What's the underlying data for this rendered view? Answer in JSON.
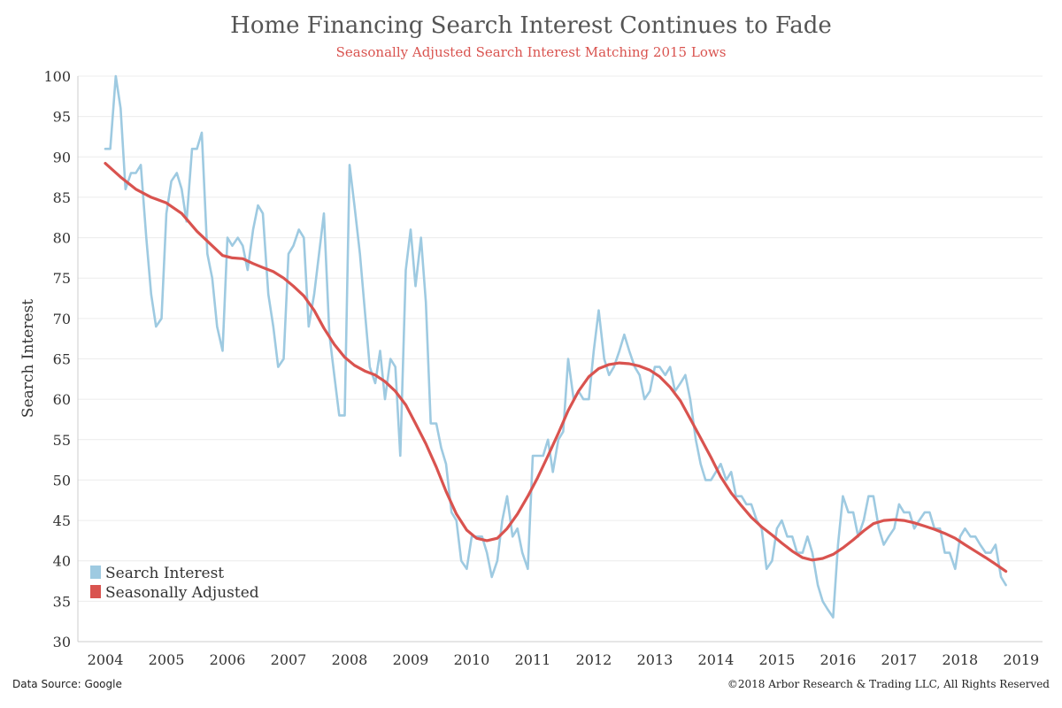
{
  "chart_data": {
    "type": "line",
    "title": "Home Financing Search Interest Continues to Fade",
    "subtitle": "Seasonally Adjusted Search Interest Matching 2015 Lows",
    "xlabel": "",
    "ylabel": "Search Interest",
    "xlim": [
      2003.55,
      2019.35
    ],
    "ylim": [
      30,
      100
    ],
    "x_ticks": [
      "2004",
      "2005",
      "2006",
      "2007",
      "2008",
      "2009",
      "2010",
      "2011",
      "2012",
      "2013",
      "2014",
      "2015",
      "2016",
      "2017",
      "2018",
      "2019"
    ],
    "y_ticks": [
      30,
      35,
      40,
      45,
      50,
      55,
      60,
      65,
      70,
      75,
      80,
      85,
      90,
      95,
      100
    ],
    "grid": "horizontal",
    "legend_position": "bottom-left",
    "series": [
      {
        "name": "Search Interest",
        "color": "#9ecae1",
        "points": [
          [
            2004.0,
            91
          ],
          [
            2004.08,
            91
          ],
          [
            2004.17,
            100
          ],
          [
            2004.25,
            96
          ],
          [
            2004.33,
            86
          ],
          [
            2004.42,
            88
          ],
          [
            2004.5,
            88
          ],
          [
            2004.58,
            89
          ],
          [
            2004.67,
            80
          ],
          [
            2004.75,
            73
          ],
          [
            2004.83,
            69
          ],
          [
            2004.92,
            70
          ],
          [
            2005.0,
            83
          ],
          [
            2005.08,
            87
          ],
          [
            2005.17,
            88
          ],
          [
            2005.25,
            86
          ],
          [
            2005.33,
            82
          ],
          [
            2005.42,
            91
          ],
          [
            2005.5,
            91
          ],
          [
            2005.58,
            93
          ],
          [
            2005.67,
            78
          ],
          [
            2005.75,
            75
          ],
          [
            2005.83,
            69
          ],
          [
            2005.92,
            66
          ],
          [
            2006.0,
            80
          ],
          [
            2006.08,
            79
          ],
          [
            2006.17,
            80
          ],
          [
            2006.25,
            79
          ],
          [
            2006.33,
            76
          ],
          [
            2006.42,
            81
          ],
          [
            2006.5,
            84
          ],
          [
            2006.58,
            83
          ],
          [
            2006.67,
            73
          ],
          [
            2006.75,
            69
          ],
          [
            2006.83,
            64
          ],
          [
            2006.92,
            65
          ],
          [
            2007.0,
            78
          ],
          [
            2007.08,
            79
          ],
          [
            2007.17,
            81
          ],
          [
            2007.25,
            80
          ],
          [
            2007.33,
            69
          ],
          [
            2007.42,
            73
          ],
          [
            2007.5,
            78
          ],
          [
            2007.58,
            83
          ],
          [
            2007.67,
            68
          ],
          [
            2007.75,
            63
          ],
          [
            2007.83,
            58
          ],
          [
            2007.92,
            58
          ],
          [
            2008.0,
            89
          ],
          [
            2008.08,
            84
          ],
          [
            2008.17,
            78
          ],
          [
            2008.25,
            71
          ],
          [
            2008.33,
            64
          ],
          [
            2008.42,
            62
          ],
          [
            2008.5,
            66
          ],
          [
            2008.58,
            60
          ],
          [
            2008.67,
            65
          ],
          [
            2008.75,
            64
          ],
          [
            2008.83,
            53
          ],
          [
            2008.92,
            76
          ],
          [
            2009.0,
            81
          ],
          [
            2009.08,
            74
          ],
          [
            2009.17,
            80
          ],
          [
            2009.25,
            72
          ],
          [
            2009.33,
            57
          ],
          [
            2009.42,
            57
          ],
          [
            2009.5,
            54
          ],
          [
            2009.58,
            52
          ],
          [
            2009.67,
            46
          ],
          [
            2009.75,
            45
          ],
          [
            2009.83,
            40
          ],
          [
            2009.92,
            39
          ],
          [
            2010.0,
            43
          ],
          [
            2010.08,
            43
          ],
          [
            2010.17,
            43
          ],
          [
            2010.25,
            41
          ],
          [
            2010.33,
            38
          ],
          [
            2010.42,
            40
          ],
          [
            2010.5,
            45
          ],
          [
            2010.58,
            48
          ],
          [
            2010.67,
            43
          ],
          [
            2010.75,
            44
          ],
          [
            2010.83,
            41
          ],
          [
            2010.92,
            39
          ],
          [
            2011.0,
            53
          ],
          [
            2011.08,
            53
          ],
          [
            2011.17,
            53
          ],
          [
            2011.25,
            55
          ],
          [
            2011.33,
            51
          ],
          [
            2011.42,
            55
          ],
          [
            2011.5,
            56
          ],
          [
            2011.58,
            65
          ],
          [
            2011.67,
            60
          ],
          [
            2011.75,
            61
          ],
          [
            2011.83,
            60
          ],
          [
            2011.92,
            60
          ],
          [
            2012.0,
            66
          ],
          [
            2012.08,
            71
          ],
          [
            2012.17,
            65
          ],
          [
            2012.25,
            63
          ],
          [
            2012.33,
            64
          ],
          [
            2012.42,
            66
          ],
          [
            2012.5,
            68
          ],
          [
            2012.58,
            66
          ],
          [
            2012.67,
            64
          ],
          [
            2012.75,
            63
          ],
          [
            2012.83,
            60
          ],
          [
            2012.92,
            61
          ],
          [
            2013.0,
            64
          ],
          [
            2013.08,
            64
          ],
          [
            2013.17,
            63
          ],
          [
            2013.25,
            64
          ],
          [
            2013.33,
            61
          ],
          [
            2013.42,
            62
          ],
          [
            2013.5,
            63
          ],
          [
            2013.58,
            60
          ],
          [
            2013.67,
            55
          ],
          [
            2013.75,
            52
          ],
          [
            2013.83,
            50
          ],
          [
            2013.92,
            50
          ],
          [
            2014.0,
            51
          ],
          [
            2014.08,
            52
          ],
          [
            2014.17,
            50
          ],
          [
            2014.25,
            51
          ],
          [
            2014.33,
            48
          ],
          [
            2014.42,
            48
          ],
          [
            2014.5,
            47
          ],
          [
            2014.58,
            47
          ],
          [
            2014.67,
            45
          ],
          [
            2014.75,
            44
          ],
          [
            2014.83,
            39
          ],
          [
            2014.92,
            40
          ],
          [
            2015.0,
            44
          ],
          [
            2015.08,
            45
          ],
          [
            2015.17,
            43
          ],
          [
            2015.25,
            43
          ],
          [
            2015.33,
            41
          ],
          [
            2015.42,
            41
          ],
          [
            2015.5,
            43
          ],
          [
            2015.58,
            41
          ],
          [
            2015.67,
            37
          ],
          [
            2015.75,
            35
          ],
          [
            2015.83,
            34
          ],
          [
            2015.92,
            33
          ],
          [
            2016.0,
            42
          ],
          [
            2016.08,
            48
          ],
          [
            2016.17,
            46
          ],
          [
            2016.25,
            46
          ],
          [
            2016.33,
            43
          ],
          [
            2016.42,
            45
          ],
          [
            2016.5,
            48
          ],
          [
            2016.58,
            48
          ],
          [
            2016.67,
            44
          ],
          [
            2016.75,
            42
          ],
          [
            2016.83,
            43
          ],
          [
            2016.92,
            44
          ],
          [
            2017.0,
            47
          ],
          [
            2017.08,
            46
          ],
          [
            2017.17,
            46
          ],
          [
            2017.25,
            44
          ],
          [
            2017.33,
            45
          ],
          [
            2017.42,
            46
          ],
          [
            2017.5,
            46
          ],
          [
            2017.58,
            44
          ],
          [
            2017.67,
            44
          ],
          [
            2017.75,
            41
          ],
          [
            2017.83,
            41
          ],
          [
            2017.92,
            39
          ],
          [
            2018.0,
            43
          ],
          [
            2018.08,
            44
          ],
          [
            2018.17,
            43
          ],
          [
            2018.25,
            43
          ],
          [
            2018.33,
            42
          ],
          [
            2018.42,
            41
          ],
          [
            2018.5,
            41
          ],
          [
            2018.58,
            42
          ],
          [
            2018.67,
            38
          ],
          [
            2018.75,
            37
          ]
        ]
      },
      {
        "name": "Seasonally Adjusted",
        "color": "#d9534f",
        "points": [
          [
            2004.0,
            89.2
          ],
          [
            2004.25,
            87.5
          ],
          [
            2004.5,
            86.0
          ],
          [
            2004.75,
            85.0
          ],
          [
            2005.0,
            84.3
          ],
          [
            2005.25,
            83.0
          ],
          [
            2005.5,
            80.8
          ],
          [
            2005.75,
            79.0
          ],
          [
            2005.92,
            77.8
          ],
          [
            2006.08,
            77.5
          ],
          [
            2006.25,
            77.4
          ],
          [
            2006.42,
            76.8
          ],
          [
            2006.58,
            76.3
          ],
          [
            2006.75,
            75.8
          ],
          [
            2006.92,
            75.0
          ],
          [
            2007.08,
            74.0
          ],
          [
            2007.25,
            72.8
          ],
          [
            2007.42,
            71.0
          ],
          [
            2007.58,
            68.8
          ],
          [
            2007.75,
            66.8
          ],
          [
            2007.92,
            65.2
          ],
          [
            2008.08,
            64.2
          ],
          [
            2008.25,
            63.5
          ],
          [
            2008.42,
            63.0
          ],
          [
            2008.58,
            62.2
          ],
          [
            2008.75,
            61.0
          ],
          [
            2008.92,
            59.3
          ],
          [
            2009.08,
            57.0
          ],
          [
            2009.25,
            54.5
          ],
          [
            2009.42,
            51.6
          ],
          [
            2009.58,
            48.6
          ],
          [
            2009.75,
            45.8
          ],
          [
            2009.92,
            43.8
          ],
          [
            2010.08,
            42.8
          ],
          [
            2010.25,
            42.5
          ],
          [
            2010.42,
            42.8
          ],
          [
            2010.58,
            44.0
          ],
          [
            2010.75,
            45.8
          ],
          [
            2010.92,
            48.0
          ],
          [
            2011.08,
            50.3
          ],
          [
            2011.25,
            53.0
          ],
          [
            2011.42,
            55.8
          ],
          [
            2011.58,
            58.6
          ],
          [
            2011.75,
            61.0
          ],
          [
            2011.92,
            62.8
          ],
          [
            2012.08,
            63.8
          ],
          [
            2012.25,
            64.3
          ],
          [
            2012.42,
            64.5
          ],
          [
            2012.58,
            64.4
          ],
          [
            2012.75,
            64.1
          ],
          [
            2012.92,
            63.6
          ],
          [
            2013.08,
            62.8
          ],
          [
            2013.25,
            61.5
          ],
          [
            2013.42,
            59.8
          ],
          [
            2013.58,
            57.6
          ],
          [
            2013.75,
            55.2
          ],
          [
            2013.92,
            52.8
          ],
          [
            2014.08,
            50.4
          ],
          [
            2014.25,
            48.4
          ],
          [
            2014.42,
            46.8
          ],
          [
            2014.58,
            45.4
          ],
          [
            2014.75,
            44.2
          ],
          [
            2014.92,
            43.2
          ],
          [
            2015.08,
            42.2
          ],
          [
            2015.25,
            41.2
          ],
          [
            2015.42,
            40.4
          ],
          [
            2015.58,
            40.1
          ],
          [
            2015.75,
            40.3
          ],
          [
            2015.92,
            40.8
          ],
          [
            2016.08,
            41.6
          ],
          [
            2016.25,
            42.6
          ],
          [
            2016.42,
            43.7
          ],
          [
            2016.58,
            44.6
          ],
          [
            2016.75,
            45.0
          ],
          [
            2016.92,
            45.1
          ],
          [
            2017.08,
            45.0
          ],
          [
            2017.25,
            44.7
          ],
          [
            2017.42,
            44.3
          ],
          [
            2017.58,
            43.9
          ],
          [
            2017.75,
            43.4
          ],
          [
            2017.92,
            42.8
          ],
          [
            2018.08,
            42.0
          ],
          [
            2018.25,
            41.2
          ],
          [
            2018.42,
            40.4
          ],
          [
            2018.58,
            39.6
          ],
          [
            2018.75,
            38.7
          ]
        ]
      }
    ]
  },
  "footer": {
    "source": "Data Source: Google",
    "copyright": "©2018 Arbor Research & Trading LLC, All Rights Reserved"
  }
}
